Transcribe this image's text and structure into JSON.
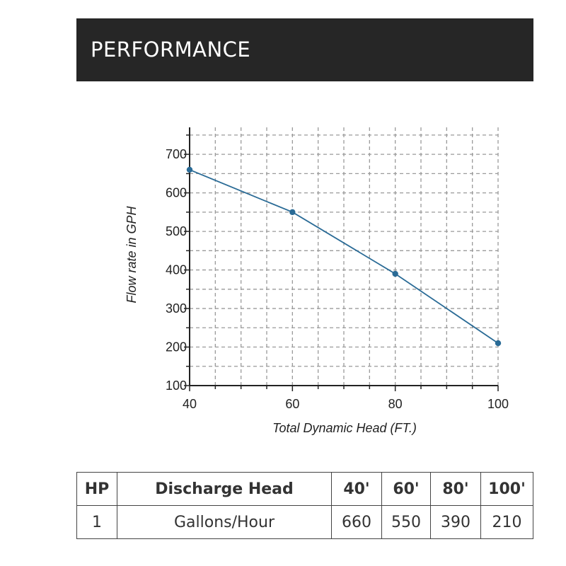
{
  "header": {
    "title": "PERFORMANCE"
  },
  "chart_data": {
    "type": "line",
    "x": [
      40,
      60,
      80,
      100
    ],
    "series": [
      {
        "values": [
          660,
          550,
          390,
          210
        ]
      }
    ],
    "xlabel": "Total Dynamic Head (FT.)",
    "ylabel": "Flow rate in GPH",
    "xlim": [
      40,
      100
    ],
    "ylim": [
      100,
      770
    ],
    "xticks": [
      40,
      60,
      80,
      100
    ],
    "yticks": [
      100,
      200,
      300,
      400,
      500,
      600,
      700
    ],
    "grid": true,
    "line_color": "#2a6b96",
    "grid_color": "#9a9a9a"
  },
  "table": {
    "headers": [
      "HP",
      "Discharge Head",
      "40'",
      "60'",
      "80'",
      "100'"
    ],
    "rows": [
      [
        "1",
        "Gallons/Hour",
        "660",
        "550",
        "390",
        "210"
      ]
    ]
  }
}
